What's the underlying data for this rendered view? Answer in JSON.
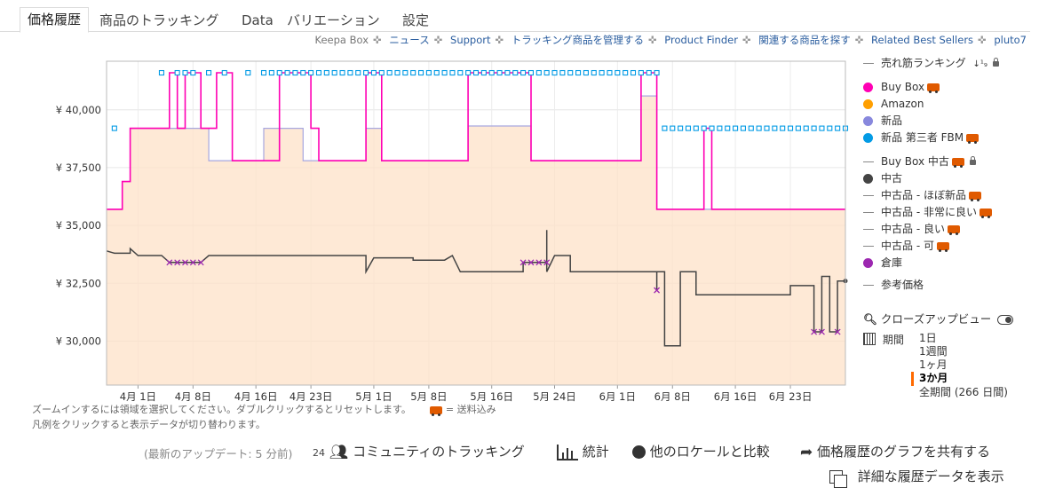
{
  "tabs": [
    {
      "label": "価格履歴"
    },
    {
      "label": "商品のトラッキング"
    },
    {
      "label": "Data"
    },
    {
      "label": "バリエーション"
    },
    {
      "label": "設定"
    }
  ],
  "toplinks": {
    "items": [
      "Keepa Box",
      "ニュース",
      "Support",
      "トラッキング商品を管理する",
      "Product Finder",
      "関連する商品を探す",
      "Related Best Sellers",
      "pluto7"
    ]
  },
  "legend": {
    "sales_rank": "売れ筋ランキング",
    "sales_rank_sort_icon": "sort-numeric-icon",
    "buy_box": "Buy Box",
    "amazon": "Amazon",
    "new": "新品",
    "new_fbm": "新品 第三者 FBM",
    "buy_box_used": "Buy Box 中古",
    "used": "中古",
    "used_like_new": "中古品 - ほぼ新品",
    "used_very_good": "中古品 - 非常に良い",
    "used_good": "中古品 - 良い",
    "used_acceptable": "中古品 - 可",
    "warehouse": "倉庫",
    "list_price": "参考価格",
    "colors": {
      "buy_box": "#ff00b4",
      "amazon": "#ff9f00",
      "new": "#8888dd",
      "new_fbm": "#039be5",
      "used": "#444444",
      "warehouse": "#9c27b0"
    }
  },
  "closeup": {
    "label": "クローズアップビュー",
    "icon": "search-icon",
    "toggle_icon": "toggle-icon"
  },
  "period": {
    "label": "期間",
    "icon": "calendar-icon",
    "options": [
      "1日",
      "1週間",
      "1ヶ月",
      "3か月",
      "全期間 (266 日間)"
    ],
    "selected": "3か月"
  },
  "notes": {
    "zoom": "ズームインするには領域を選択してください。ダブルクリックするとリセットします。",
    "shipping": "= 送料込み",
    "legend_hint": "凡例をクリックすると表示データが切り替わります。"
  },
  "footer": {
    "last_update": "(最新のアップデート: 5 分前)",
    "community_count": "24",
    "community": "コミュニティのトラッキング",
    "stats": "統計",
    "compare": "他のロケールと比較",
    "share": "価格履歴のグラフを共有する",
    "details": "詳細な履歴データを表示"
  },
  "chart_data": {
    "type": "line",
    "title": "",
    "xlabel": "",
    "ylabel": "",
    "x_range": [
      "2025-03-28",
      "2025-06-30"
    ],
    "ylim": [
      28100,
      42100
    ],
    "y_ticks": [
      30000,
      32500,
      35000,
      37500,
      40000
    ],
    "y_tick_labels": [
      "¥ 30,000",
      "¥ 32,500",
      "¥ 35,000",
      "¥ 37,500",
      "¥ 40,000"
    ],
    "x_ticks": [
      {
        "date": "2025-04-01",
        "label": "4月 1日"
      },
      {
        "date": "2025-04-08",
        "label": "4月 8日"
      },
      {
        "date": "2025-04-16",
        "label": "4月 16日"
      },
      {
        "date": "2025-04-23",
        "label": "4月 23日"
      },
      {
        "date": "2025-05-01",
        "label": "5月 1日"
      },
      {
        "date": "2025-05-08",
        "label": "5月 8日"
      },
      {
        "date": "2025-05-16",
        "label": "5月 16日"
      },
      {
        "date": "2025-05-24",
        "label": "5月 24日"
      },
      {
        "date": "2025-06-01",
        "label": "6月 1日"
      },
      {
        "date": "2025-06-08",
        "label": "6月 8日"
      },
      {
        "date": "2025-06-16",
        "label": "6月 16日"
      },
      {
        "date": "2025-06-23",
        "label": "6月 23日"
      }
    ],
    "grid": true,
    "legend_position": "right",
    "series": [
      {
        "name": "新品",
        "step": true,
        "points": [
          [
            "2025-03-28",
            35700
          ],
          [
            "2025-03-30",
            35700
          ],
          [
            "2025-03-30",
            36900
          ],
          [
            "2025-03-31",
            36900
          ],
          [
            "2025-03-31",
            39200
          ],
          [
            "2025-04-10",
            39200
          ],
          [
            "2025-04-10",
            37800
          ],
          [
            "2025-04-17",
            37800
          ],
          [
            "2025-04-17",
            39200
          ],
          [
            "2025-04-22",
            39200
          ],
          [
            "2025-04-22",
            37800
          ],
          [
            "2025-04-30",
            37800
          ],
          [
            "2025-04-30",
            39200
          ],
          [
            "2025-05-02",
            39200
          ],
          [
            "2025-05-02",
            37800
          ],
          [
            "2025-05-13",
            37800
          ],
          [
            "2025-05-13",
            39300
          ],
          [
            "2025-05-21",
            39300
          ],
          [
            "2025-05-21",
            37800
          ],
          [
            "2025-06-04",
            37800
          ],
          [
            "2025-06-04",
            40600
          ],
          [
            "2025-06-06",
            40600
          ],
          [
            "2025-06-06",
            35700
          ],
          [
            "2025-06-30",
            35700
          ]
        ]
      },
      {
        "name": "Buy Box",
        "step": true,
        "points": [
          [
            "2025-03-28",
            35700
          ],
          [
            "2025-03-30",
            35700
          ],
          [
            "2025-03-30",
            36900
          ],
          [
            "2025-03-31",
            36900
          ],
          [
            "2025-03-31",
            39200
          ],
          [
            "2025-04-05",
            39200
          ],
          [
            "2025-04-05",
            41600
          ],
          [
            "2025-04-06",
            41600
          ],
          [
            "2025-04-06",
            39200
          ],
          [
            "2025-04-07",
            39200
          ],
          [
            "2025-04-07",
            41600
          ],
          [
            "2025-04-09",
            41600
          ],
          [
            "2025-04-09",
            39200
          ],
          [
            "2025-04-11",
            39200
          ],
          [
            "2025-04-11",
            41600
          ],
          [
            "2025-04-13",
            41600
          ],
          [
            "2025-04-13",
            37800
          ],
          [
            "2025-04-19",
            37800
          ],
          [
            "2025-04-19",
            41600
          ],
          [
            "2025-04-23",
            41600
          ],
          [
            "2025-04-23",
            39200
          ],
          [
            "2025-04-24",
            39200
          ],
          [
            "2025-04-24",
            37800
          ],
          [
            "2025-04-30",
            37800
          ],
          [
            "2025-04-30",
            41600
          ],
          [
            "2025-05-02",
            41600
          ],
          [
            "2025-05-02",
            37800
          ],
          [
            "2025-05-13",
            37800
          ],
          [
            "2025-05-13",
            41600
          ],
          [
            "2025-05-21",
            41600
          ],
          [
            "2025-05-21",
            37800
          ],
          [
            "2025-06-04",
            37800
          ],
          [
            "2025-06-04",
            41600
          ],
          [
            "2025-06-06",
            41600
          ],
          [
            "2025-06-06",
            35700
          ],
          [
            "2025-06-12",
            35700
          ],
          [
            "2025-06-12",
            39200
          ],
          [
            "2025-06-13",
            39200
          ],
          [
            "2025-06-13",
            35700
          ],
          [
            "2025-06-30",
            35700
          ]
        ]
      },
      {
        "name": "新品 第三者 FBM",
        "marker": "square",
        "points": [
          [
            "2025-03-29",
            39200
          ],
          [
            "2025-04-04",
            41600
          ],
          [
            "2025-04-06",
            41600
          ],
          [
            "2025-04-07",
            41600
          ],
          [
            "2025-04-08",
            41600
          ],
          [
            "2025-04-10",
            41600
          ],
          [
            "2025-04-12",
            41600
          ],
          [
            "2025-04-15",
            41600
          ],
          [
            "2025-04-17",
            41600
          ],
          [
            "2025-04-18",
            41600
          ],
          [
            "2025-04-19",
            41600
          ],
          [
            "2025-04-20",
            41600
          ],
          [
            "2025-04-21",
            41600
          ],
          [
            "2025-04-22",
            41600
          ],
          [
            "2025-04-23",
            41600
          ],
          [
            "2025-04-24",
            41600
          ],
          [
            "2025-04-25",
            41600
          ],
          [
            "2025-04-26",
            41600
          ],
          [
            "2025-04-27",
            41600
          ],
          [
            "2025-04-28",
            41600
          ],
          [
            "2025-04-29",
            41600
          ],
          [
            "2025-04-30",
            41600
          ],
          [
            "2025-05-01",
            41600
          ],
          [
            "2025-05-02",
            41600
          ],
          [
            "2025-05-03",
            41600
          ],
          [
            "2025-05-04",
            41600
          ],
          [
            "2025-05-05",
            41600
          ],
          [
            "2025-05-06",
            41600
          ],
          [
            "2025-05-07",
            41600
          ],
          [
            "2025-05-08",
            41600
          ],
          [
            "2025-05-09",
            41600
          ],
          [
            "2025-05-10",
            41600
          ],
          [
            "2025-05-11",
            41600
          ],
          [
            "2025-05-12",
            41600
          ],
          [
            "2025-05-13",
            41600
          ],
          [
            "2025-05-14",
            41600
          ],
          [
            "2025-05-15",
            41600
          ],
          [
            "2025-05-16",
            41600
          ],
          [
            "2025-05-17",
            41600
          ],
          [
            "2025-05-18",
            41600
          ],
          [
            "2025-05-19",
            41600
          ],
          [
            "2025-05-20",
            41600
          ],
          [
            "2025-05-21",
            41600
          ],
          [
            "2025-05-22",
            41600
          ],
          [
            "2025-05-23",
            41600
          ],
          [
            "2025-05-24",
            41600
          ],
          [
            "2025-05-25",
            41600
          ],
          [
            "2025-05-26",
            41600
          ],
          [
            "2025-05-27",
            41600
          ],
          [
            "2025-05-28",
            41600
          ],
          [
            "2025-05-29",
            41600
          ],
          [
            "2025-05-30",
            41600
          ],
          [
            "2025-05-31",
            41600
          ],
          [
            "2025-06-01",
            41600
          ],
          [
            "2025-06-02",
            41600
          ],
          [
            "2025-06-03",
            41600
          ],
          [
            "2025-06-04",
            41600
          ],
          [
            "2025-06-05",
            41600
          ],
          [
            "2025-06-06",
            41600
          ],
          [
            "2025-06-07",
            39200
          ],
          [
            "2025-06-08",
            39200
          ],
          [
            "2025-06-09",
            39200
          ],
          [
            "2025-06-10",
            39200
          ],
          [
            "2025-06-11",
            39200
          ],
          [
            "2025-06-12",
            39200
          ],
          [
            "2025-06-13",
            39200
          ],
          [
            "2025-06-14",
            39200
          ],
          [
            "2025-06-15",
            39200
          ],
          [
            "2025-06-16",
            39200
          ],
          [
            "2025-06-17",
            39200
          ],
          [
            "2025-06-18",
            39200
          ],
          [
            "2025-06-19",
            39200
          ],
          [
            "2025-06-20",
            39200
          ],
          [
            "2025-06-21",
            39200
          ],
          [
            "2025-06-22",
            39200
          ],
          [
            "2025-06-23",
            39200
          ],
          [
            "2025-06-24",
            39200
          ],
          [
            "2025-06-25",
            39200
          ],
          [
            "2025-06-26",
            39200
          ],
          [
            "2025-06-27",
            39200
          ],
          [
            "2025-06-28",
            39200
          ],
          [
            "2025-06-29",
            39200
          ],
          [
            "2025-06-30",
            39200
          ]
        ]
      },
      {
        "name": "中古",
        "step": true,
        "points": [
          [
            "2025-03-28",
            33900
          ],
          [
            "2025-03-29",
            33800
          ],
          [
            "2025-03-31",
            33800
          ],
          [
            "2025-03-31",
            34000
          ],
          [
            "2025-04-01",
            33700
          ],
          [
            "2025-04-04",
            33700
          ],
          [
            "2025-04-05",
            33400
          ],
          [
            "2025-04-09",
            33400
          ],
          [
            "2025-04-10",
            33700
          ],
          [
            "2025-04-30",
            33700
          ],
          [
            "2025-04-30",
            33000
          ],
          [
            "2025-05-01",
            33600
          ],
          [
            "2025-05-06",
            33600
          ],
          [
            "2025-05-06",
            33500
          ],
          [
            "2025-05-10",
            33500
          ],
          [
            "2025-05-11",
            33700
          ],
          [
            "2025-05-12",
            33000
          ],
          [
            "2025-05-20",
            33000
          ],
          [
            "2025-05-20",
            33400
          ],
          [
            "2025-05-23",
            33400
          ],
          [
            "2025-05-23",
            34800
          ],
          [
            "2025-05-23",
            33000
          ],
          [
            "2025-05-24",
            33700
          ],
          [
            "2025-05-26",
            33700
          ],
          [
            "2025-05-26",
            33000
          ],
          [
            "2025-06-06",
            33000
          ],
          [
            "2025-06-06",
            32200
          ],
          [
            "2025-06-06",
            33000
          ],
          [
            "2025-06-07",
            33000
          ],
          [
            "2025-06-07",
            29800
          ],
          [
            "2025-06-09",
            29800
          ],
          [
            "2025-06-09",
            33000
          ],
          [
            "2025-06-11",
            33000
          ],
          [
            "2025-06-11",
            32000
          ],
          [
            "2025-06-23",
            32000
          ],
          [
            "2025-06-23",
            32400
          ],
          [
            "2025-06-26",
            32400
          ],
          [
            "2025-06-26",
            30400
          ],
          [
            "2025-06-27",
            30400
          ],
          [
            "2025-06-27",
            32800
          ],
          [
            "2025-06-28",
            32800
          ],
          [
            "2025-06-28",
            30400
          ],
          [
            "2025-06-29",
            30400
          ],
          [
            "2025-06-29",
            32600
          ],
          [
            "2025-06-30",
            32600
          ]
        ]
      },
      {
        "name": "倉庫",
        "marker": "x",
        "points": [
          [
            "2025-04-05",
            33400
          ],
          [
            "2025-04-06",
            33400
          ],
          [
            "2025-04-07",
            33400
          ],
          [
            "2025-04-08",
            33400
          ],
          [
            "2025-04-09",
            33400
          ],
          [
            "2025-05-20",
            33400
          ],
          [
            "2025-05-21",
            33400
          ],
          [
            "2025-05-22",
            33400
          ],
          [
            "2025-05-23",
            33400
          ],
          [
            "2025-06-06",
            32200
          ],
          [
            "2025-06-26",
            30400
          ],
          [
            "2025-06-27",
            30400
          ],
          [
            "2025-06-29",
            30400
          ]
        ]
      }
    ]
  }
}
